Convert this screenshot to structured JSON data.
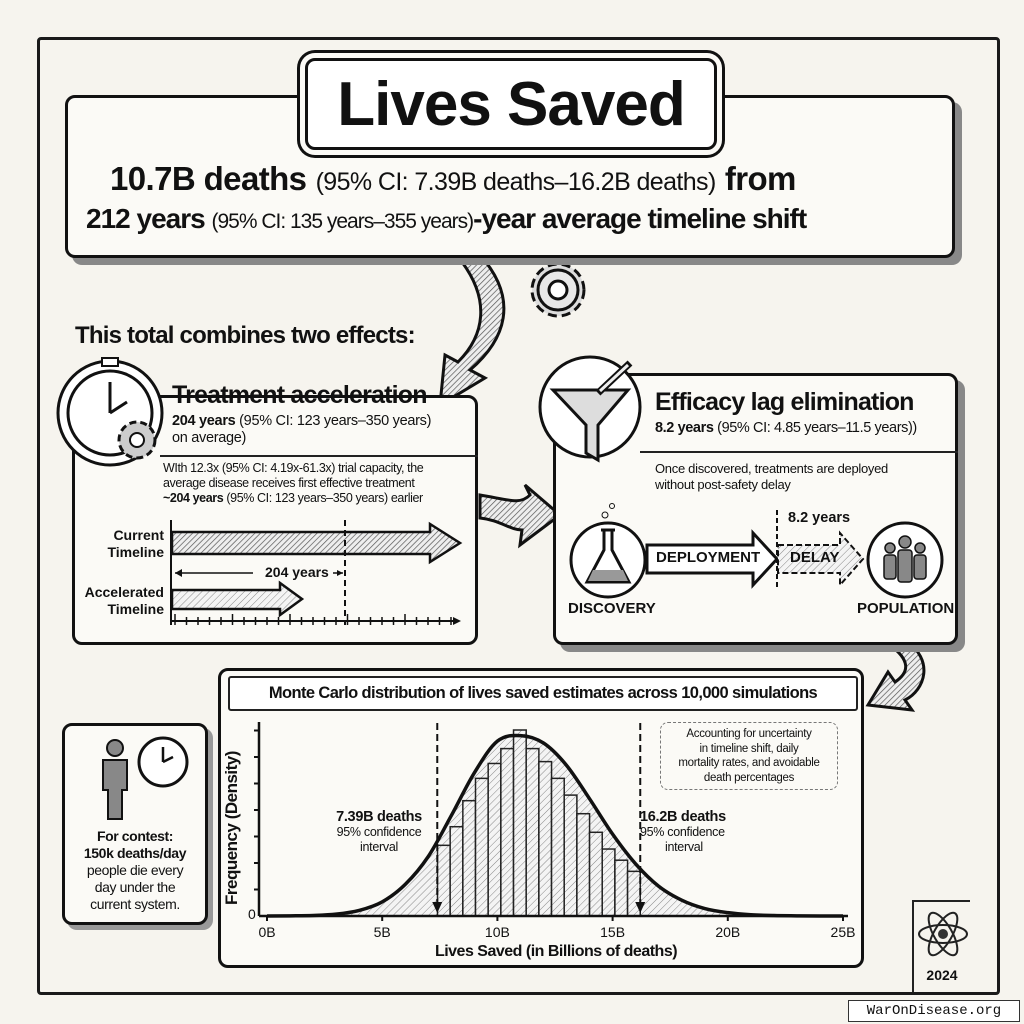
{
  "header": {
    "title": "Lives Saved",
    "line1_bold": "10.7B deaths",
    "line1_ci": "(95% CI: 7.39B deaths–16.2B deaths)",
    "line1_end": "from",
    "line2_bold": "212 years",
    "line2_ci": "(95% CI: 135 years–355 years)",
    "line2_end": "-year average timeline shift"
  },
  "intro": "This total combines two effects:",
  "treatment": {
    "title": "Treatment acceleration",
    "value_bold": "204 years",
    "value_ci": "(95% CI: 123 years–350 years)",
    "value_tail": "on average)",
    "desc_line1": "WIth 12.3x (95% CI: 4.19x-61.3x) trial capacity, the",
    "desc_line2": "average disease receives first effective treatment",
    "desc_bold": "~204 years",
    "desc_tail": "(95% CI: 123 years–350 years) earlier",
    "current_label_1": "Current",
    "current_label_2": "Timeline",
    "accel_label_1": "Accelerated",
    "accel_label_2": "Timeline",
    "gap_label": "204 years",
    "icon": "stopwatch-gear-icon"
  },
  "efficacy": {
    "title": "Efficacy lag elimination",
    "value_bold": "8.2 years",
    "value_ci": "(95% CI: 4.85 years–11.5 years))",
    "desc_line1": "Once discovered, treatments are deployed",
    "desc_line2": "without post-safety delay",
    "delay_span": "8.2 years",
    "discovery": "DISCOVERY",
    "deployment": "DEPLOYMENT",
    "delay": "DELAY",
    "population": "POPULATION",
    "icon": "funnel-syringe-icon"
  },
  "contest": {
    "line1": "For contest:",
    "line2": "150k deaths/day",
    "line3": "people die every",
    "line4": "day under the",
    "line5": "current system."
  },
  "chart_data": {
    "type": "bar",
    "title": "Monte Carlo distribution of lives saved estimates across 10,000 simulations",
    "xlabel": "Lives Saved (in Billions of deaths)",
    "ylabel": "Frequency (Density)",
    "xlim": [
      0,
      25
    ],
    "x_ticks": [
      "0B",
      "5B",
      "10B",
      "15B",
      "20B",
      "25B"
    ],
    "x_tick_values": [
      0,
      5,
      10,
      15,
      20,
      25
    ],
    "y_ticks": [
      "0"
    ],
    "grid": false,
    "histogram": {
      "bin_start": [
        7.4,
        7.95,
        8.5,
        9.05,
        9.6,
        10.15,
        10.7,
        11.25,
        11.8,
        12.35,
        12.9,
        13.45,
        14.0,
        14.55,
        15.1,
        15.65
      ],
      "bin_width": 0.55,
      "relative_frequency": [
        0.38,
        0.48,
        0.62,
        0.74,
        0.82,
        0.9,
        1.0,
        0.9,
        0.83,
        0.74,
        0.65,
        0.55,
        0.45,
        0.36,
        0.3,
        0.24
      ]
    },
    "density_curve": {
      "x": [
        0,
        1,
        2,
        3,
        4,
        5,
        6,
        7,
        8,
        9,
        10,
        11,
        12,
        13,
        14,
        15,
        16,
        17,
        18,
        19,
        20,
        21,
        22,
        23,
        24,
        25
      ],
      "y": [
        0,
        0.001,
        0.003,
        0.01,
        0.03,
        0.076,
        0.17,
        0.32,
        0.54,
        0.77,
        0.94,
        0.97,
        0.93,
        0.81,
        0.63,
        0.44,
        0.28,
        0.16,
        0.085,
        0.04,
        0.018,
        0.007,
        0.0025,
        0.001,
        0,
        0
      ]
    },
    "annotations": [
      {
        "x": 7.39,
        "label": "7.39B deaths",
        "sub": "95% confidence interval"
      },
      {
        "x": 16.2,
        "label": "16.2B deaths",
        "sub": "95% confidence interval"
      }
    ],
    "note": "Accounting for uncertainty in timeline shift, daily mortality rates, and avoidable death percentages"
  },
  "chart_text": {
    "lower_label": "7.39B deaths",
    "lower_sub1": "95% confidence",
    "lower_sub2": "interval",
    "upper_label": "16.2B deaths",
    "upper_sub1": "95% confidence",
    "upper_sub2": "interval",
    "note1": "Accounting for uncertainty",
    "note2": "in timeline shift, daily",
    "note3": "mortality rates, and avoidable",
    "note4": "death percentages"
  },
  "badge": {
    "year": "2024",
    "icon": "atom-icon"
  },
  "footer": "WarOnDisease.org"
}
